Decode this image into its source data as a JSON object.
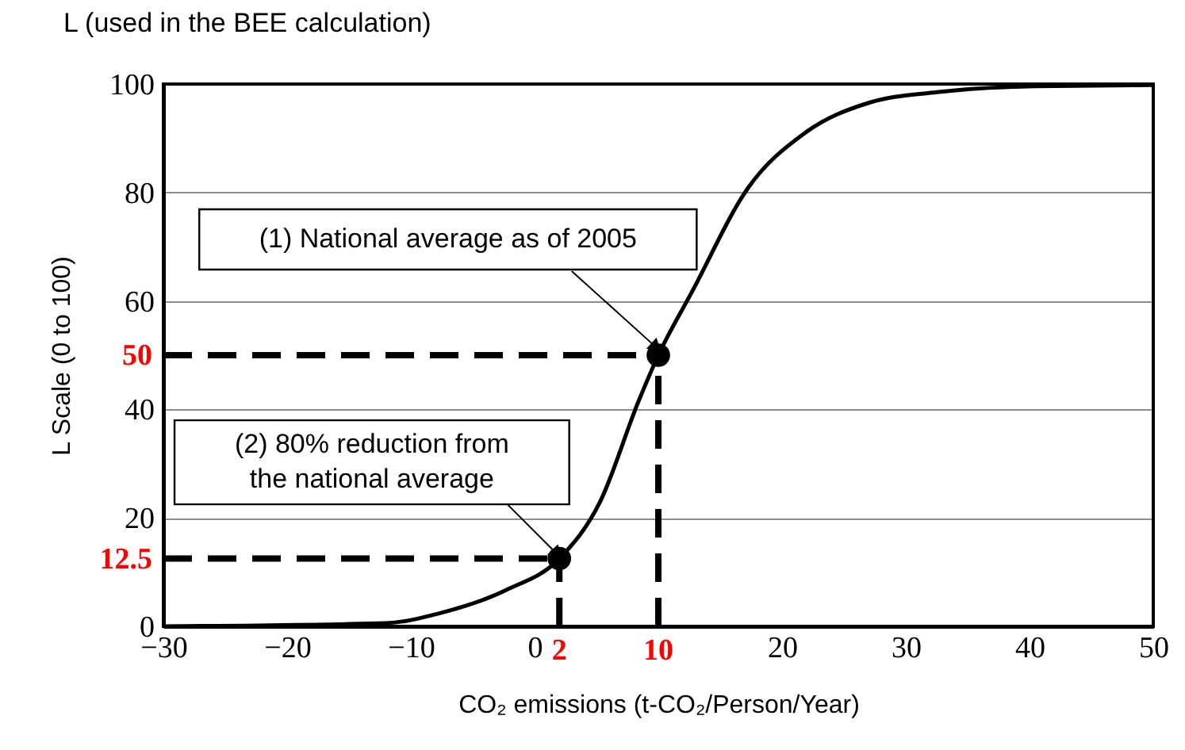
{
  "chart_data": {
    "type": "line",
    "title": "L (used in the BEE calculation)",
    "xlabel": "CO₂ emissions (t-CO₂/Person/Year)",
    "ylabel": "L Scale (0 to 100)",
    "xlim": [
      -30,
      50
    ],
    "ylim": [
      0,
      100
    ],
    "xticks": [
      -30,
      -20,
      -10,
      0,
      20,
      30,
      40,
      50
    ],
    "yticks": [
      0,
      20,
      40,
      60,
      80,
      100
    ],
    "grid": "y",
    "series": [
      {
        "color": "#000000",
        "marker": "none",
        "line_style": "solid",
        "x": [
          -30,
          -12,
          -7.7,
          -2.3,
          2,
          5.3,
          8.4,
          10,
          12.7,
          17.3,
          21.8,
          27.1,
          32.5,
          40.5,
          50
        ],
        "values": [
          0,
          0.6,
          2.4,
          6.7,
          12.5,
          23,
          41.5,
          50,
          61.6,
          81,
          90.9,
          96.6,
          98.5,
          99.6,
          99.8
        ]
      },
      {
        "type": "scatter",
        "color": "#000000",
        "marker": "circle",
        "x": [
          2,
          10
        ],
        "values": [
          12.5,
          50
        ]
      }
    ],
    "ref_lines": [
      {
        "axis": "y",
        "value": 50,
        "label": "50",
        "color": "#000000",
        "line_style": "dashed"
      },
      {
        "axis": "y",
        "value": 12.5,
        "label": "12.5",
        "color": "#000000",
        "line_style": "dashed"
      },
      {
        "axis": "x",
        "value": 2,
        "label": "2",
        "color": "#000000",
        "line_style": "dashed"
      },
      {
        "axis": "x",
        "value": 10,
        "label": "10",
        "color": "#000000",
        "line_style": "dashed"
      }
    ],
    "annotations": [
      {
        "text": "(1) National average as of 2005",
        "x": 10,
        "y": 50
      },
      {
        "text": "(2) 80% reduction from\nthe national average",
        "x": 2,
        "y": 12.5
      }
    ]
  }
}
